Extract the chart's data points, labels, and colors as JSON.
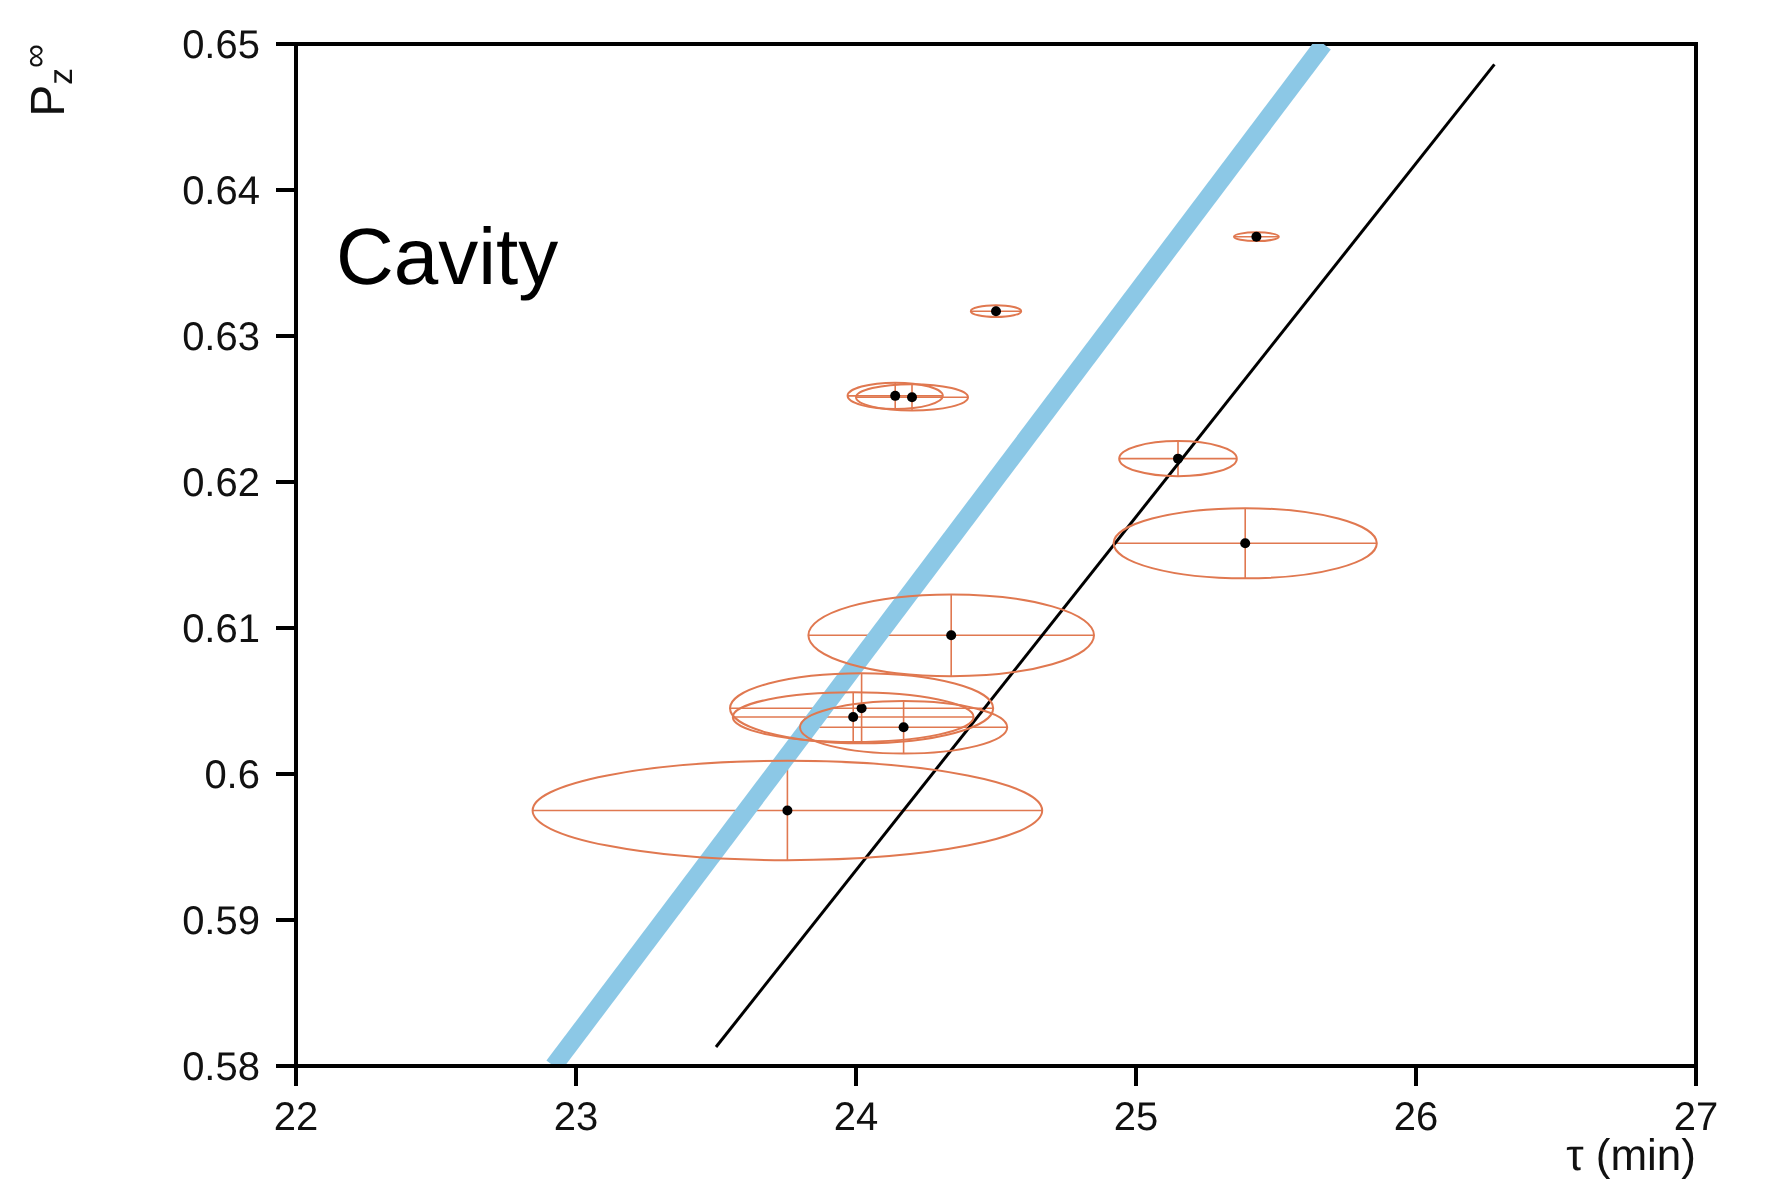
{
  "chart_data": {
    "type": "scatter",
    "xlabel": "τ (min)",
    "ylabel": "P$_{z}$$^{∞}$",
    "annotations": [
      "Cavity"
    ],
    "xlim": [
      22,
      27
    ],
    "xticks": [
      22,
      23,
      24,
      25,
      26,
      27
    ],
    "ylim": [
      0.58,
      0.65
    ],
    "yticks": [
      0.58,
      0.59,
      0.6,
      0.61,
      0.62,
      0.63,
      0.64,
      0.65
    ],
    "grid": false,
    "legend": false,
    "series": [
      {
        "marker": "circle",
        "color": "#000000",
        "x": [
          23.755,
          23.99,
          24.02,
          24.17,
          24.34,
          24.14,
          24.2,
          24.5,
          25.15,
          25.39,
          25.43
        ],
        "values": [
          0.5975,
          0.6039,
          0.6045,
          0.6032,
          0.6095,
          0.6259,
          0.6258,
          0.6317,
          0.6216,
          0.6158,
          0.6368
        ],
        "xerrors": [
          0.91,
          0.43,
          0.47,
          0.37,
          0.51,
          0.17,
          0.2,
          0.09,
          0.21,
          0.47,
          0.08
        ],
        "errors": [
          0.0034,
          0.0017,
          0.0024,
          0.0018,
          0.0028,
          0.0009,
          0.0009,
          0.0004,
          0.0012,
          0.0024,
          0.0003
        ]
      },
      {
        "type": "line",
        "marker": "none",
        "color": "#8cc8e6",
        "x": [
          22.92,
          25.67
        ],
        "values": [
          0.58,
          0.65
        ]
      },
      {
        "type": "line",
        "marker": "none",
        "color": "#000000",
        "x": [
          23.5,
          26.28
        ],
        "values": [
          0.5813,
          0.6486
        ]
      }
    ]
  }
}
